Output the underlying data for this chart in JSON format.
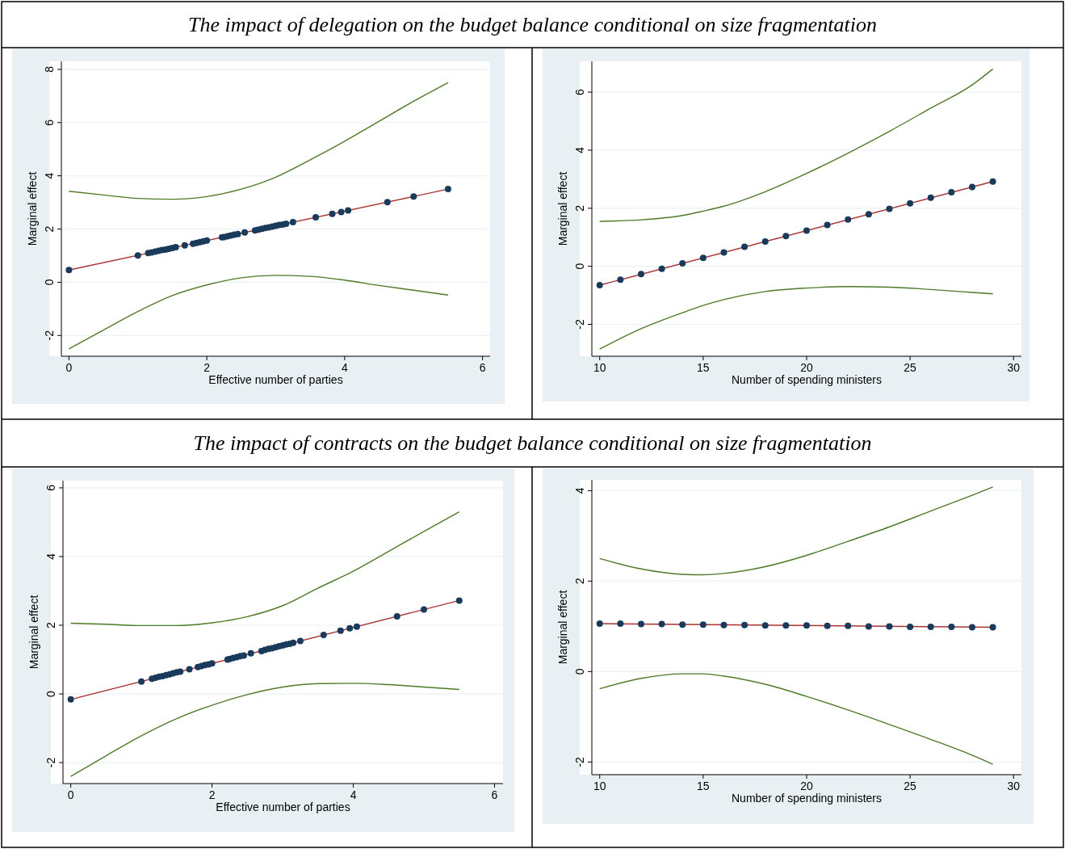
{
  "chart_data": [
    {
      "type": "line",
      "title": "The impact of delegation on the budget balance conditional on size fragmentation",
      "xlabel": "Effective number of parties",
      "ylabel": "Marginal effect",
      "xlim": [
        -0.11,
        6.11
      ],
      "ylim": [
        -2.78,
        8.3
      ],
      "xticks": [
        0,
        2,
        4,
        6
      ],
      "yticks": [
        -2,
        0,
        2,
        4,
        6,
        8
      ],
      "grid": "y",
      "series": [
        {
          "color": "#4f7a28",
          "x": [
            0,
            0.5,
            1,
            1.5,
            2,
            2.5,
            3,
            3.5,
            4,
            4.5,
            5,
            5.5
          ],
          "values": [
            3.42,
            3.28,
            3.15,
            3.12,
            3.22,
            3.5,
            3.95,
            4.6,
            5.3,
            6.05,
            6.8,
            7.5
          ]
        },
        {
          "color": "#4f7a28",
          "x": [
            0,
            0.5,
            1,
            1.5,
            2,
            2.5,
            3,
            3.5,
            4,
            4.5,
            5,
            5.5
          ],
          "values": [
            -2.5,
            -1.8,
            -1.1,
            -0.5,
            -0.1,
            0.17,
            0.26,
            0.22,
            0.08,
            -0.12,
            -0.3,
            -0.48
          ]
        },
        {
          "color": "#a83232",
          "x": [
            0,
            5.5
          ],
          "values": [
            0.46,
            3.5
          ]
        },
        {
          "type": "scatter",
          "color": "#1a3a5c",
          "marker": "circle",
          "x": [
            0,
            1,
            1.15,
            1.2,
            1.25,
            1.3,
            1.35,
            1.4,
            1.45,
            1.5,
            1.55,
            1.68,
            1.8,
            1.85,
            1.9,
            1.95,
            2.0,
            2.22,
            2.25,
            2.3,
            2.35,
            2.4,
            2.45,
            2.55,
            2.7,
            2.75,
            2.8,
            2.85,
            2.9,
            2.95,
            3.0,
            3.05,
            3.1,
            3.15,
            3.25,
            3.58,
            3.82,
            3.95,
            4.05,
            4.62,
            5.0,
            5.5
          ],
          "values": [
            0.46,
            1.01,
            1.1,
            1.12,
            1.15,
            1.18,
            1.21,
            1.23,
            1.26,
            1.29,
            1.32,
            1.39,
            1.45,
            1.48,
            1.51,
            1.54,
            1.57,
            1.69,
            1.7,
            1.73,
            1.76,
            1.79,
            1.81,
            1.87,
            1.95,
            1.98,
            2.01,
            2.04,
            2.06,
            2.09,
            2.12,
            2.15,
            2.17,
            2.2,
            2.26,
            2.44,
            2.57,
            2.64,
            2.7,
            3.01,
            3.22,
            3.5
          ]
        }
      ]
    },
    {
      "type": "line",
      "xlabel": "Number of spending ministers",
      "ylabel": "Marginal effect",
      "xlim": [
        9.62,
        30.38
      ],
      "ylim": [
        -3.1,
        7.06
      ],
      "xticks": [
        10,
        15,
        20,
        25,
        30
      ],
      "yticks": [
        -2,
        0,
        2,
        4,
        6
      ],
      "grid": "y",
      "series": [
        {
          "color": "#4f7a28",
          "x": [
            10,
            12,
            14,
            15,
            16,
            18,
            20,
            22,
            24,
            26,
            28,
            29
          ],
          "values": [
            1.55,
            1.6,
            1.75,
            1.9,
            2.07,
            2.57,
            3.2,
            3.9,
            4.65,
            5.45,
            6.25,
            6.8
          ]
        },
        {
          "color": "#4f7a28",
          "x": [
            10,
            12,
            14,
            15,
            16,
            18,
            20,
            22,
            24,
            26,
            28,
            29
          ],
          "values": [
            -2.85,
            -2.15,
            -1.6,
            -1.35,
            -1.15,
            -0.87,
            -0.75,
            -0.7,
            -0.72,
            -0.8,
            -0.9,
            -0.95
          ]
        },
        {
          "color": "#a83232",
          "x": [
            10,
            29
          ],
          "values": [
            -0.65,
            2.92
          ]
        },
        {
          "type": "scatter",
          "color": "#1a3a5c",
          "marker": "circle",
          "x": [
            10,
            11,
            12,
            13,
            14,
            15,
            16,
            17,
            18,
            19,
            20,
            21,
            22,
            23,
            24,
            25,
            26,
            27,
            28,
            29
          ],
          "values": [
            -0.65,
            -0.46,
            -0.27,
            -0.09,
            0.1,
            0.29,
            0.48,
            0.67,
            0.85,
            1.04,
            1.23,
            1.42,
            1.61,
            1.79,
            1.98,
            2.17,
            2.36,
            2.55,
            2.73,
            2.92
          ]
        }
      ]
    },
    {
      "type": "line",
      "title": "The impact of contracts on the budget balance conditional on size fragmentation",
      "xlabel": "Effective number of parties",
      "ylabel": "Marginal effect",
      "xlim": [
        -0.11,
        6.12
      ],
      "ylim": [
        -2.61,
        6.21
      ],
      "xticks": [
        0,
        2,
        4,
        6
      ],
      "yticks": [
        -2,
        0,
        2,
        4,
        6
      ],
      "grid": "y",
      "series": [
        {
          "color": "#4f7a28",
          "x": [
            0,
            0.5,
            1,
            1.5,
            2,
            2.5,
            3,
            3.5,
            4,
            4.5,
            5,
            5.5
          ],
          "values": [
            2.06,
            2.03,
            1.99,
            1.99,
            2.07,
            2.25,
            2.57,
            3.08,
            3.57,
            4.15,
            4.73,
            5.3
          ]
        },
        {
          "color": "#4f7a28",
          "x": [
            0,
            0.5,
            1,
            1.5,
            2,
            2.5,
            3,
            3.5,
            4,
            4.5,
            5,
            5.5
          ],
          "values": [
            -2.4,
            -1.8,
            -1.22,
            -0.72,
            -0.33,
            -0.02,
            0.2,
            0.3,
            0.31,
            0.27,
            0.2,
            0.13
          ]
        },
        {
          "color": "#a83232",
          "x": [
            0,
            5.5
          ],
          "values": [
            -0.16,
            2.72
          ]
        },
        {
          "type": "scatter",
          "color": "#1a3a5c",
          "marker": "circle",
          "x": [
            0,
            1,
            1.15,
            1.2,
            1.25,
            1.3,
            1.35,
            1.4,
            1.45,
            1.5,
            1.55,
            1.68,
            1.8,
            1.85,
            1.9,
            1.95,
            2.0,
            2.22,
            2.25,
            2.3,
            2.35,
            2.4,
            2.45,
            2.55,
            2.7,
            2.75,
            2.8,
            2.85,
            2.9,
            2.95,
            3.0,
            3.05,
            3.1,
            3.15,
            3.25,
            3.58,
            3.82,
            3.95,
            4.05,
            4.62,
            5.0,
            5.5
          ],
          "values": [
            -0.16,
            0.36,
            0.44,
            0.47,
            0.5,
            0.52,
            0.55,
            0.57,
            0.6,
            0.63,
            0.65,
            0.72,
            0.78,
            0.81,
            0.84,
            0.86,
            0.89,
            1.0,
            1.02,
            1.05,
            1.07,
            1.1,
            1.12,
            1.18,
            1.25,
            1.28,
            1.31,
            1.33,
            1.36,
            1.39,
            1.41,
            1.44,
            1.46,
            1.49,
            1.54,
            1.72,
            1.84,
            1.91,
            1.96,
            2.26,
            2.46,
            2.72
          ]
        }
      ]
    },
    {
      "type": "line",
      "xlabel": "Number of spending ministers",
      "ylabel": "Marginal effect",
      "xlim": [
        9.62,
        30.38
      ],
      "ylim": [
        -2.28,
        4.24
      ],
      "xticks": [
        10,
        15,
        20,
        25,
        30
      ],
      "yticks": [
        -2,
        0,
        2,
        4
      ],
      "grid": "y",
      "series": [
        {
          "color": "#4f7a28",
          "x": [
            10,
            12,
            14,
            15,
            16,
            18,
            20,
            22,
            24,
            26,
            28,
            29
          ],
          "values": [
            2.5,
            2.27,
            2.15,
            2.14,
            2.17,
            2.32,
            2.57,
            2.88,
            3.2,
            3.55,
            3.9,
            4.08
          ]
        },
        {
          "color": "#4f7a28",
          "x": [
            10,
            12,
            14,
            15,
            16,
            18,
            20,
            22,
            24,
            26,
            28,
            29
          ],
          "values": [
            -0.38,
            -0.15,
            -0.05,
            -0.05,
            -0.1,
            -0.28,
            -0.55,
            -0.85,
            -1.17,
            -1.5,
            -1.85,
            -2.05
          ]
        },
        {
          "color": "#a83232",
          "x": [
            10,
            29
          ],
          "values": [
            1.06,
            0.98
          ]
        },
        {
          "type": "scatter",
          "color": "#1a3a5c",
          "marker": "circle",
          "x": [
            10,
            11,
            12,
            13,
            14,
            15,
            16,
            17,
            18,
            19,
            20,
            21,
            22,
            23,
            24,
            25,
            26,
            27,
            28,
            29
          ],
          "values": [
            1.06,
            1.06,
            1.05,
            1.05,
            1.04,
            1.04,
            1.03,
            1.03,
            1.02,
            1.02,
            1.02,
            1.01,
            1.01,
            1.0,
            1.0,
            0.99,
            0.99,
            0.99,
            0.98,
            0.98
          ]
        }
      ]
    }
  ]
}
